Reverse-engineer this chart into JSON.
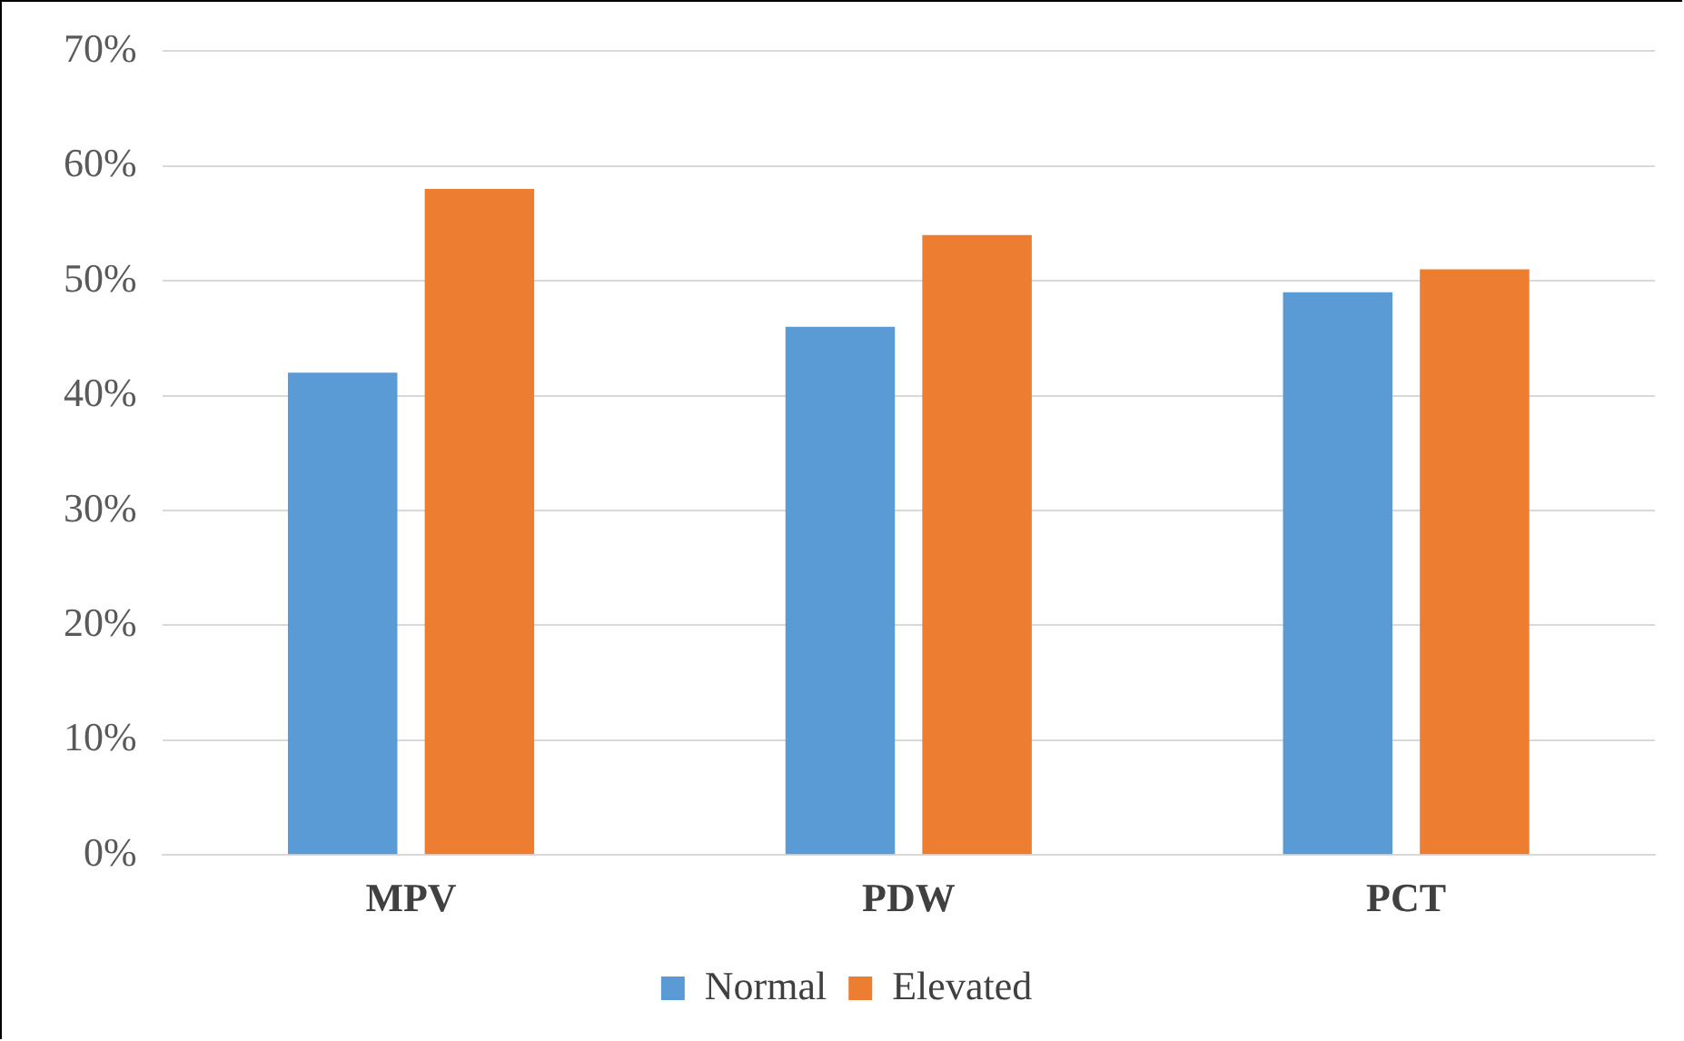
{
  "chart_data": {
    "type": "bar",
    "categories": [
      "MPV",
      "PDW",
      "PCT"
    ],
    "series": [
      {
        "name": "Normal",
        "color": "#5b9bd5",
        "values": [
          42,
          46,
          49
        ]
      },
      {
        "name": "Elevated",
        "color": "#ed7d31",
        "values": [
          58,
          54,
          51
        ]
      }
    ],
    "ylim": [
      0,
      70
    ],
    "yticks": [
      {
        "value": 0,
        "label": "0%"
      },
      {
        "value": 10,
        "label": "10%"
      },
      {
        "value": 20,
        "label": "20%"
      },
      {
        "value": 30,
        "label": "30%"
      },
      {
        "value": 40,
        "label": "40%"
      },
      {
        "value": 50,
        "label": "50%"
      },
      {
        "value": 60,
        "label": "60%"
      },
      {
        "value": 70,
        "label": "70%"
      }
    ],
    "grid": "y",
    "legend": "bottom"
  }
}
